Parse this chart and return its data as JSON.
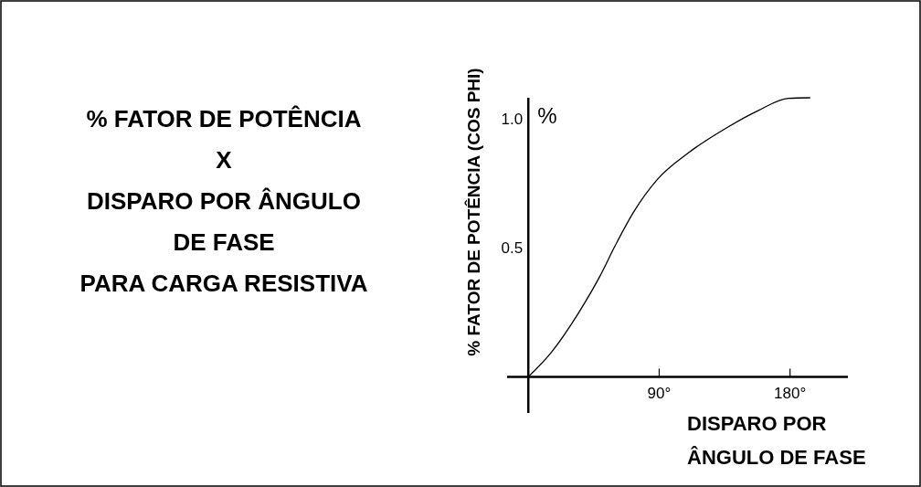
{
  "chart_data": {
    "type": "line",
    "title": "% FATOR DE POTÊNCIA\nX\nDISPARO POR ÂNGULO\nDE FASE\nPARA CARGA RESISTIVA",
    "ylabel": "% FATOR DE POTÊNCIA (COS PHI)",
    "xlabel": "DISPARO POR\nÂNGULO DE FASE",
    "annotations": [
      "%"
    ],
    "series": [
      {
        "color": "#000000",
        "x": [
          0,
          15.7,
          34.5,
          49.2,
          59.6,
          72.2,
          88.9,
          109.9,
          137.1,
          158,
          178.9,
          193.6
        ],
        "values": [
          0,
          0.094,
          0.247,
          0.389,
          0.506,
          0.636,
          0.765,
          0.866,
          0.966,
          1.03,
          1.078,
          1.08
        ]
      }
    ],
    "xlim": [
      -14.6,
      219.8
    ],
    "ylim": [
      -0.14,
      1.08
    ],
    "xticks": [
      {
        "value": 90,
        "label": "90°"
      },
      {
        "value": 180,
        "label": "180°"
      }
    ],
    "yticks": [
      {
        "value": 0.5,
        "label": "0.5"
      },
      {
        "value": 1,
        "label": "1.0"
      }
    ],
    "grid": false,
    "marker": "none",
    "line_style": "solid"
  }
}
